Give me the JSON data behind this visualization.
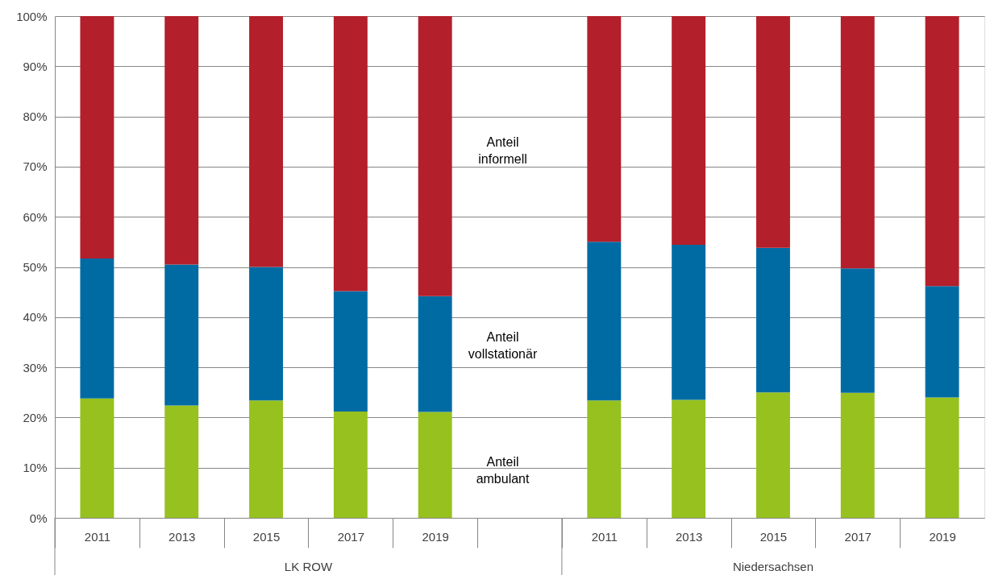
{
  "chart_data": {
    "type": "bar",
    "stacked": true,
    "categories": [
      "2011",
      "2013",
      "2015",
      "2017",
      "2019",
      null,
      "2011",
      "2013",
      "2015",
      "2017",
      "2019"
    ],
    "series": [
      {
        "name": "Anteil ambulant",
        "color": "#97c11f",
        "values": [
          23.8,
          22.4,
          23.4,
          21.2,
          21.1,
          null,
          23.4,
          23.5,
          25.0,
          24.9,
          24.0
        ]
      },
      {
        "name": "Anteil vollstationär",
        "color": "#006ba3",
        "values": [
          27.9,
          28.1,
          26.6,
          24.0,
          23.1,
          null,
          31.6,
          30.9,
          28.8,
          24.8,
          22.2
        ]
      },
      {
        "name": "Anteil informell",
        "color": "#b31f2a",
        "values": [
          48.3,
          49.5,
          50.0,
          54.8,
          55.8,
          null,
          45.0,
          45.6,
          46.2,
          50.3,
          53.8
        ]
      }
    ],
    "ylim": [
      0,
      100
    ],
    "yticks": [
      {
        "value": 0,
        "label": "0%"
      },
      {
        "value": 10,
        "label": "10%"
      },
      {
        "value": 20,
        "label": "20%"
      },
      {
        "value": 30,
        "label": "30%"
      },
      {
        "value": 40,
        "label": "40%"
      },
      {
        "value": 50,
        "label": "50%"
      },
      {
        "value": 60,
        "label": "60%"
      },
      {
        "value": 70,
        "label": "70%"
      },
      {
        "value": 80,
        "label": "80%"
      },
      {
        "value": 90,
        "label": "90%"
      },
      {
        "value": 100,
        "label": "100%"
      }
    ],
    "grid": "y",
    "annotations": [
      "LK ROW",
      "Niedersachsen"
    ]
  }
}
